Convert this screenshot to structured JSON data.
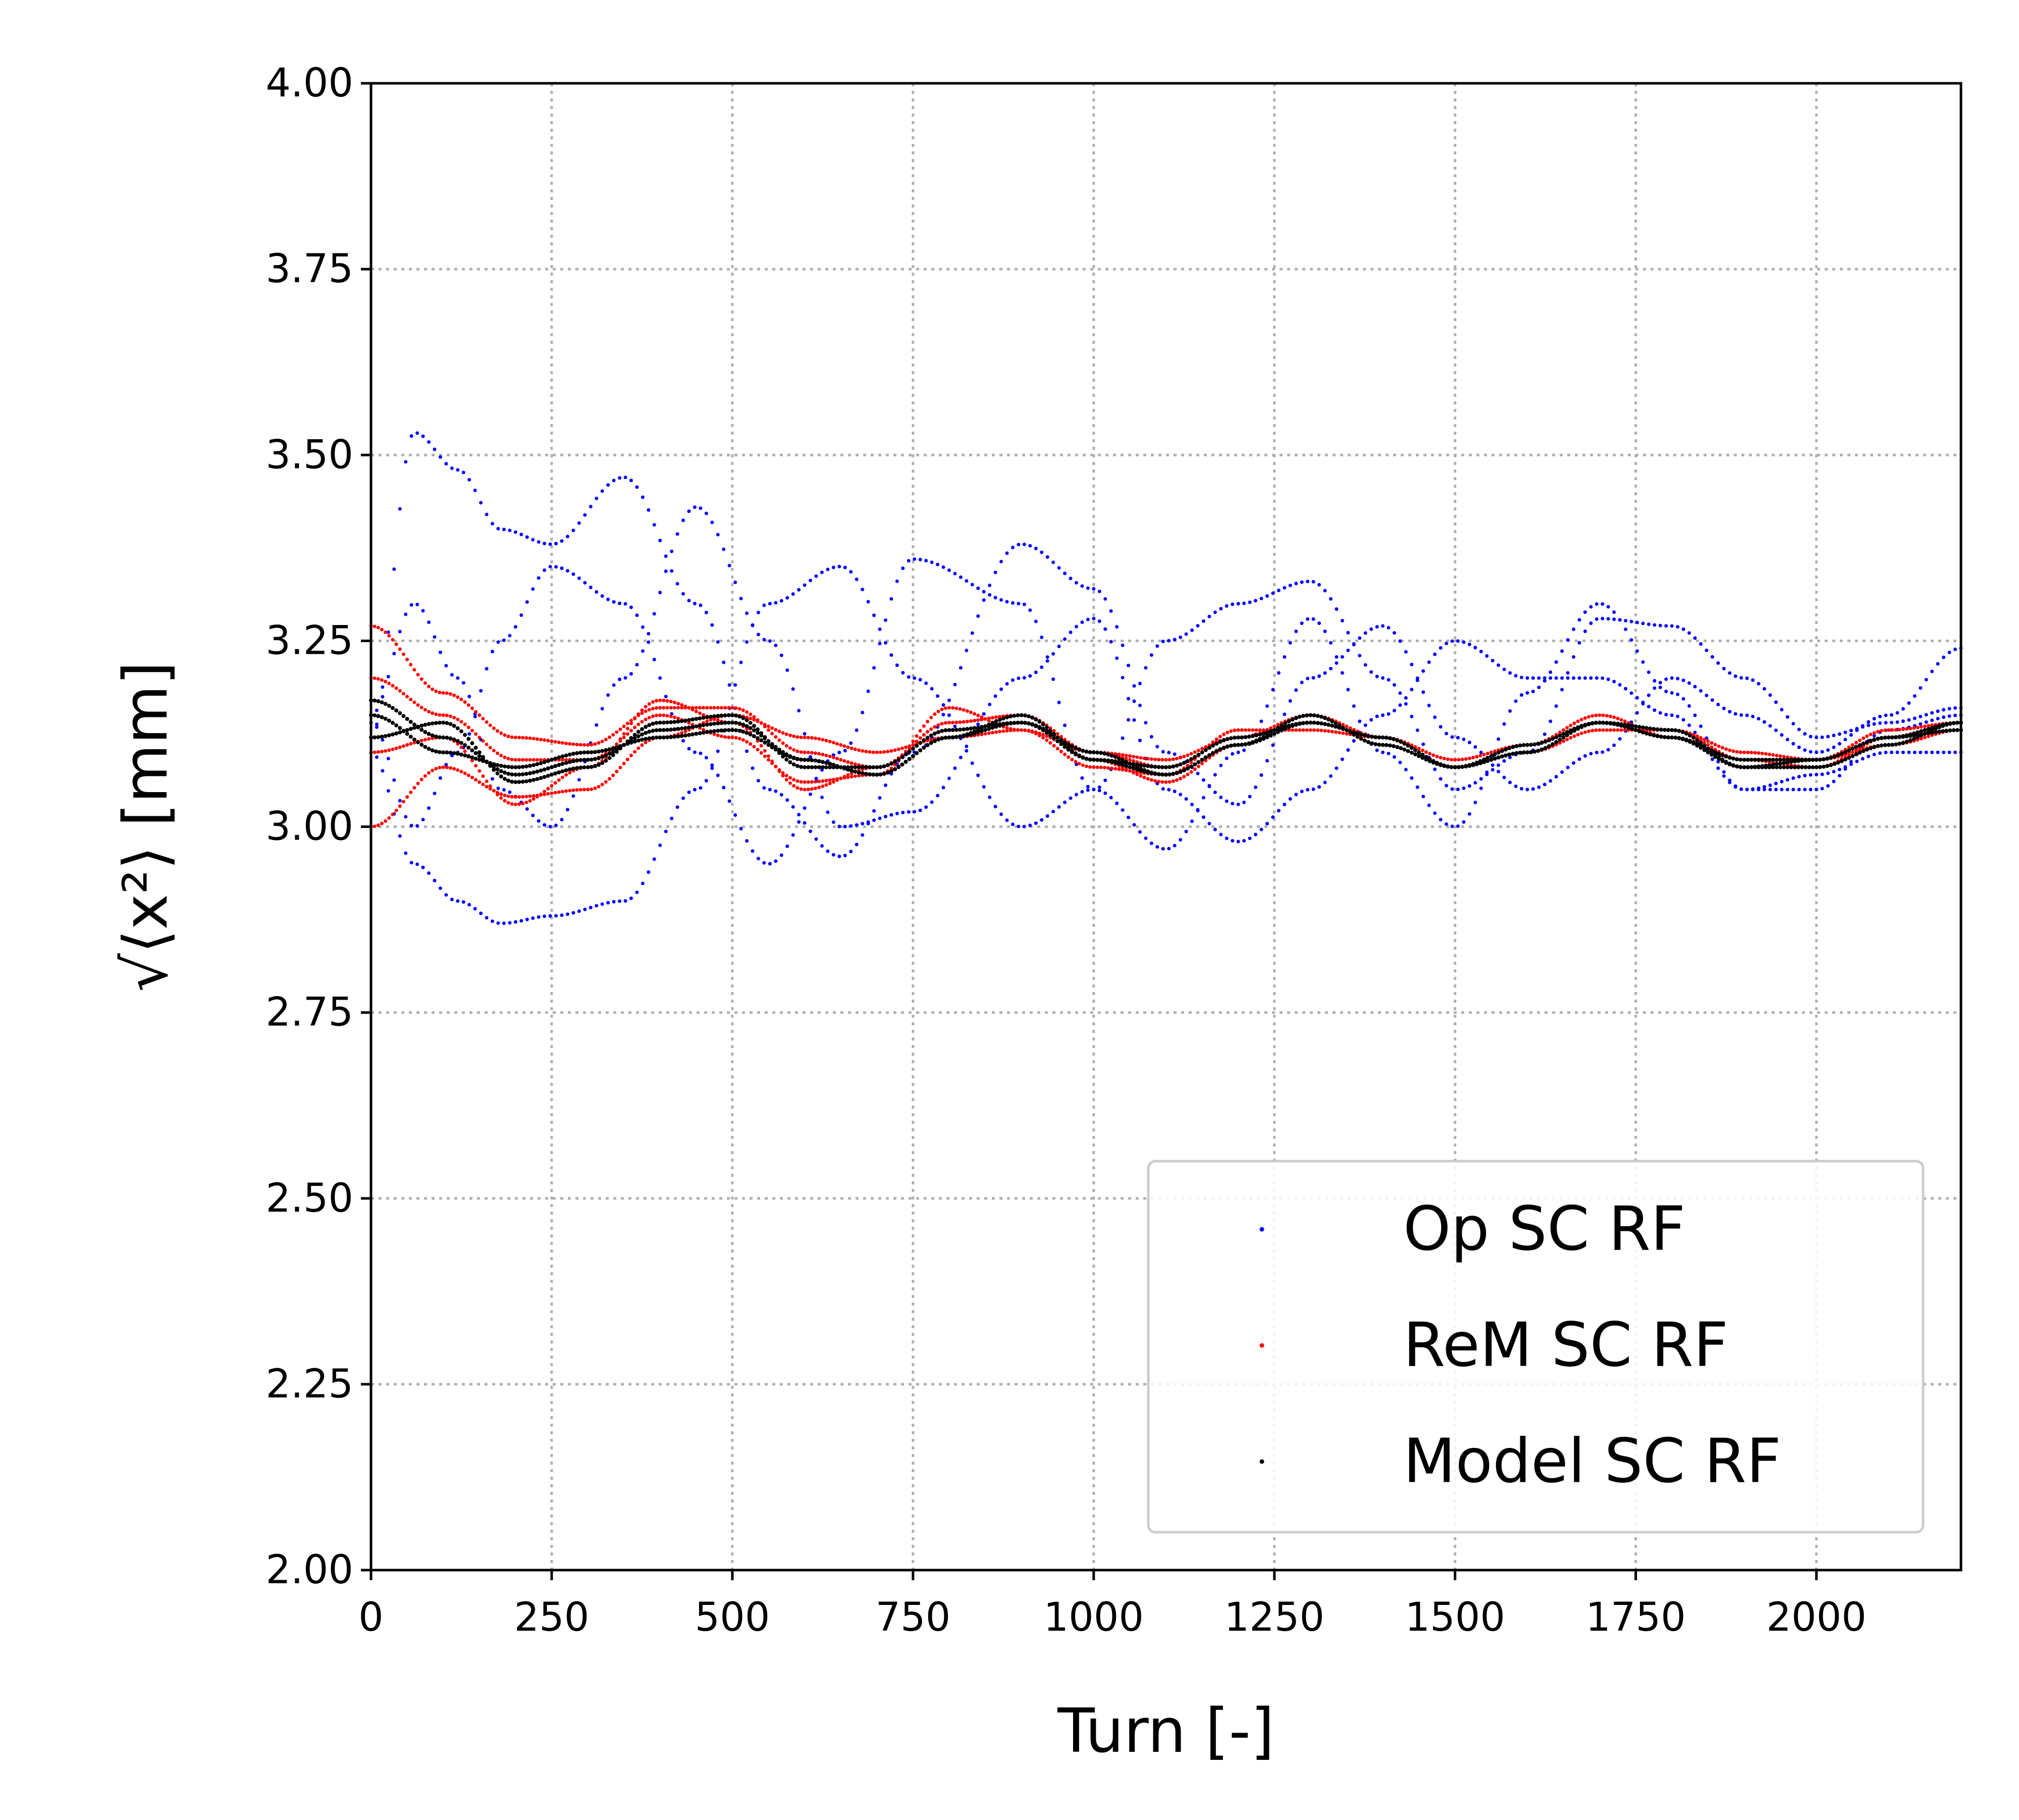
{
  "chart_data": {
    "type": "scatter",
    "xlabel": "Turn [-]",
    "ylabel": "√⟨x²⟩ [mm]",
    "xlim": [
      0,
      2200
    ],
    "ylim": [
      2.0,
      4.0
    ],
    "x_ticks": [
      "0",
      "250",
      "500",
      "750",
      "1000",
      "1250",
      "1500",
      "1750",
      "2000"
    ],
    "y_ticks": [
      "2.00",
      "2.25",
      "2.50",
      "2.75",
      "3.00",
      "3.25",
      "3.50",
      "3.75",
      "4.00"
    ],
    "grid": true,
    "legend_position": "lower-right",
    "series": [
      {
        "name": "Op SC RF",
        "color": "#0000ff",
        "description_of_traces": "several interleaved oscillating traces, large initial spread decaying over turns",
        "traces": [
          {
            "x": [
              0,
              60,
              120,
              180,
              250,
              350,
              450,
              550,
              650,
              750,
              900,
              1000,
              1100,
              1200,
              1300,
              1400,
              1500,
              1600,
              1700,
              1800,
              1900,
              2000,
              2100,
              2200
            ],
            "y": [
              3.12,
              3.53,
              3.48,
              3.4,
              3.38,
              3.47,
              3.3,
              3.05,
              2.96,
              3.1,
              3.38,
              3.32,
              3.1,
              3.03,
              3.2,
              3.27,
              3.12,
              3.05,
              3.1,
              3.2,
              3.15,
              3.1,
              3.15,
              3.24
            ]
          },
          {
            "x": [
              0,
              60,
              120,
              180,
              250,
              350,
              450,
              550,
              650,
              750,
              900,
              1000,
              1100,
              1200,
              1300,
              1400,
              1500,
              1600,
              1700,
              1800,
              1900,
              2000,
              2100,
              2200
            ],
            "y": [
              3.1,
              2.95,
              2.9,
              2.87,
              2.88,
              2.9,
              3.05,
              3.3,
              3.35,
              3.2,
              3.0,
              3.05,
              3.25,
              3.3,
              3.33,
              3.2,
              3.05,
              3.1,
              3.28,
              3.27,
              3.2,
              3.12,
              3.14,
              3.16
            ]
          },
          {
            "x": [
              0,
              60,
              120,
              180,
              250,
              350,
              450,
              550,
              650,
              750,
              900,
              1000,
              1100,
              1200,
              1300,
              1400,
              1500,
              1600,
              1700,
              1800,
              1900,
              2000,
              2100,
              2200
            ],
            "y": [
              3.15,
              3.3,
              3.2,
              3.05,
              3.0,
              3.2,
              3.43,
              3.25,
              3.0,
              3.02,
              3.2,
              3.28,
              3.05,
              2.98,
              3.05,
              3.15,
              3.25,
              3.2,
              3.2,
              3.15,
              3.05,
              3.07,
              3.1,
              3.1
            ]
          },
          {
            "x": [
              0,
              60,
              120,
              180,
              250,
              350,
              450,
              550,
              650,
              750,
              900,
              1000,
              1100,
              1200,
              1300,
              1400,
              1500,
              1600,
              1700,
              1800,
              1900,
              2000,
              2100,
              2200
            ],
            "y": [
              3.14,
              3.0,
              3.1,
              3.25,
              3.35,
              3.3,
              3.1,
              2.95,
              3.1,
              3.36,
              3.3,
              3.05,
              2.97,
              3.1,
              3.28,
              3.1,
              3.0,
              3.18,
              3.3,
              3.18,
              3.05,
              3.05,
              3.13,
              3.15
            ]
          }
        ]
      },
      {
        "name": "ReM SC RF",
        "color": "#ff0000",
        "description_of_traces": "several traces tightly oscillating around the model, converging",
        "traces": [
          {
            "x": [
              0,
              100,
              200,
              300,
              400,
              500,
              600,
              700,
              800,
              900,
              1000,
              1100,
              1200,
              1300,
              1400,
              1500,
              1600,
              1700,
              1800,
              1900,
              2000,
              2100,
              2200
            ],
            "y": [
              3.27,
              3.18,
              3.12,
              3.11,
              3.16,
              3.16,
              3.1,
              3.08,
              3.14,
              3.15,
              3.1,
              3.08,
              3.12,
              3.14,
              3.12,
              3.08,
              3.11,
              3.14,
              3.12,
              3.09,
              3.09,
              3.12,
              3.14
            ]
          },
          {
            "x": [
              0,
              100,
              200,
              300,
              400,
              500,
              600,
              700,
              800,
              900,
              1000,
              1100,
              1200,
              1300,
              1400,
              1500,
              1600,
              1700,
              1800,
              1900,
              2000,
              2100,
              2200
            ],
            "y": [
              3.0,
              3.08,
              3.04,
              3.05,
              3.12,
              3.15,
              3.12,
              3.1,
              3.12,
              3.13,
              3.1,
              3.09,
              3.12,
              3.15,
              3.11,
              3.08,
              3.1,
              3.13,
              3.13,
              3.1,
              3.09,
              3.11,
              3.13
            ]
          },
          {
            "x": [
              0,
              100,
              200,
              300,
              400,
              500,
              600,
              700,
              800,
              900,
              1000,
              1100,
              1200,
              1300,
              1400,
              1500,
              1600,
              1700,
              1800,
              1900,
              2000,
              2100,
              2200
            ],
            "y": [
              3.2,
              3.15,
              3.09,
              3.09,
              3.15,
              3.12,
              3.06,
              3.07,
              3.16,
              3.13,
              3.08,
              3.07,
              3.13,
              3.13,
              3.12,
              3.09,
              3.11,
              3.15,
              3.12,
              3.08,
              3.09,
              3.13,
              3.14
            ]
          },
          {
            "x": [
              0,
              100,
              200,
              300,
              400,
              500,
              600,
              700,
              800,
              900,
              1000,
              1100,
              1200,
              1300,
              1400,
              1500,
              1600,
              1700,
              1800,
              1900,
              2000,
              2100,
              2200
            ],
            "y": [
              3.1,
              3.12,
              3.03,
              3.08,
              3.17,
              3.14,
              3.05,
              3.08,
              3.14,
              3.15,
              3.09,
              3.06,
              3.11,
              3.15,
              3.12,
              3.08,
              3.1,
              3.14,
              3.13,
              3.09,
              3.08,
              3.12,
              3.14
            ]
          }
        ]
      },
      {
        "name": "Model SC RF",
        "color": "#000000",
        "description_of_traces": "thick band of traces along a smooth damped oscillation",
        "traces": [
          {
            "x": [
              0,
              100,
              200,
              300,
              400,
              500,
              600,
              700,
              800,
              900,
              1000,
              1100,
              1200,
              1300,
              1400,
              1500,
              1600,
              1700,
              1800,
              1900,
              2000,
              2100,
              2200
            ],
            "y": [
              3.17,
              3.12,
              3.07,
              3.09,
              3.13,
              3.14,
              3.09,
              3.07,
              3.12,
              3.14,
              3.1,
              3.07,
              3.11,
              3.15,
              3.11,
              3.08,
              3.1,
              3.14,
              3.12,
              3.08,
              3.09,
              3.12,
              3.14
            ]
          },
          {
            "x": [
              0,
              100,
              200,
              300,
              400,
              500,
              600,
              700,
              800,
              900,
              1000,
              1100,
              1200,
              1300,
              1400,
              1500,
              1600,
              1700,
              1800,
              1900,
              2000,
              2100,
              2200
            ],
            "y": [
              3.12,
              3.14,
              3.06,
              3.08,
              3.14,
              3.15,
              3.08,
              3.08,
              3.13,
              3.14,
              3.09,
              3.08,
              3.12,
              3.14,
              3.12,
              3.08,
              3.1,
              3.14,
              3.12,
              3.09,
              3.09,
              3.12,
              3.13
            ]
          },
          {
            "x": [
              0,
              100,
              200,
              300,
              400,
              500,
              600,
              700,
              800,
              900,
              1000,
              1100,
              1200,
              1300,
              1400,
              1500,
              1600,
              1700,
              1800,
              1900,
              2000,
              2100,
              2200
            ],
            "y": [
              3.15,
              3.1,
              3.08,
              3.1,
              3.12,
              3.13,
              3.09,
              3.07,
              3.12,
              3.15,
              3.09,
              3.07,
              3.11,
              3.14,
              3.12,
              3.08,
              3.11,
              3.14,
              3.13,
              3.08,
              3.08,
              3.11,
              3.14
            ]
          }
        ]
      }
    ]
  }
}
